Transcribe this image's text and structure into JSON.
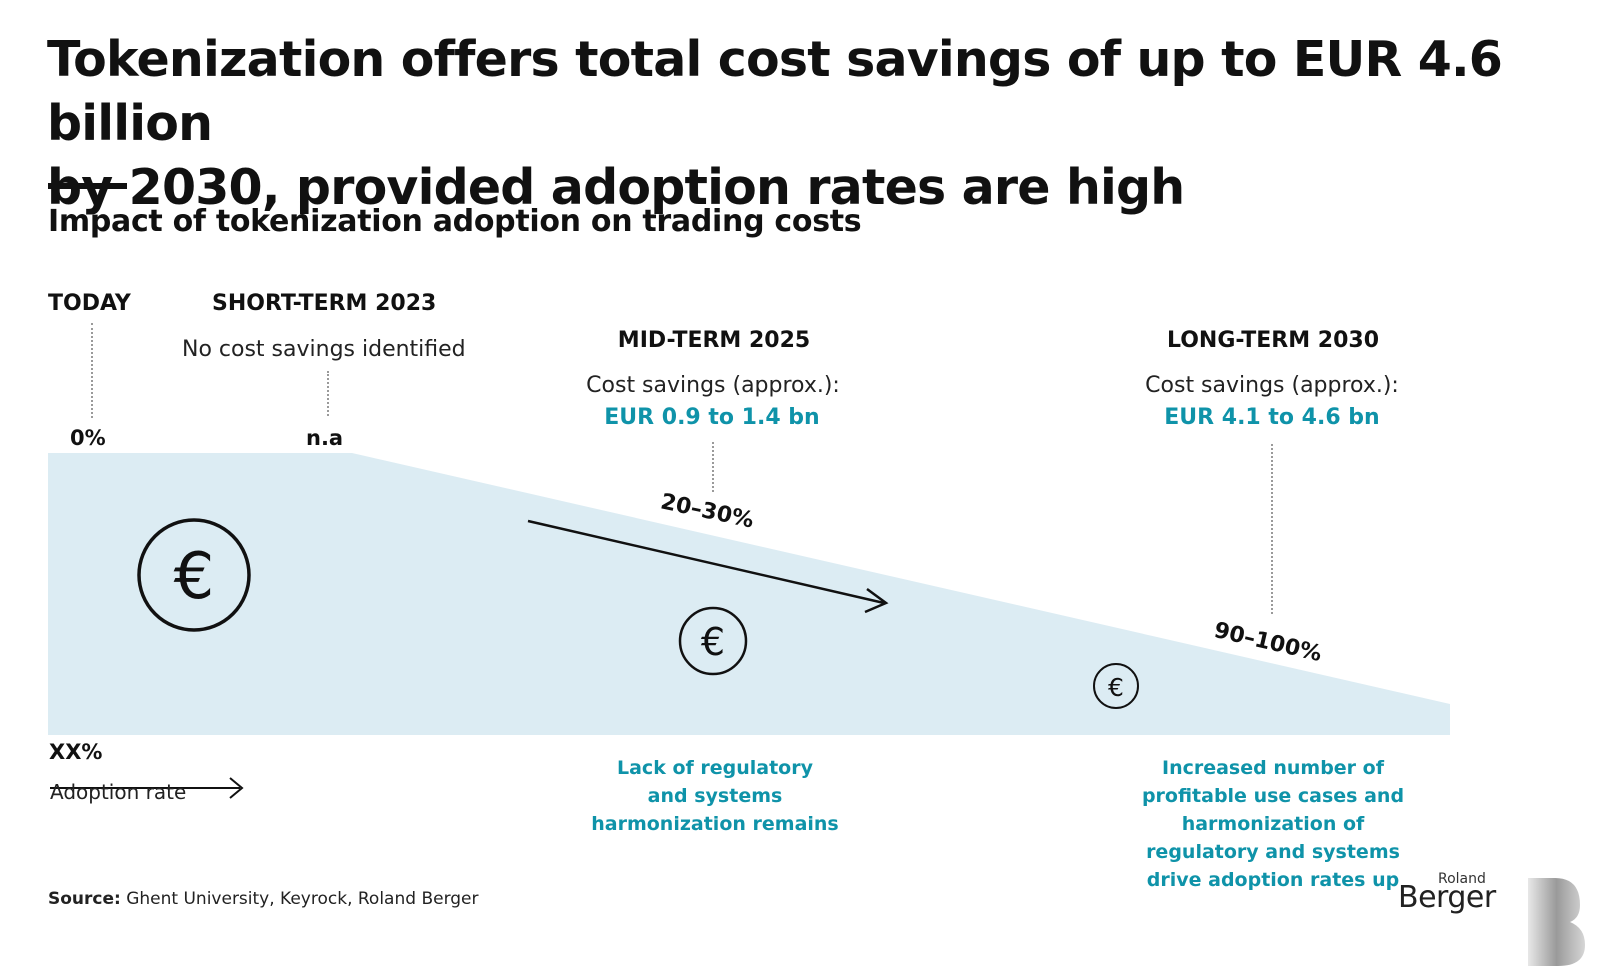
{
  "title": {
    "line1": "Tokenization offers total cost savings of up to EUR 4.6 billion",
    "line2": "by 2030, provided adoption rates are high"
  },
  "subtitle": "Impact of tokenization adoption on trading costs",
  "stages": {
    "today": {
      "label": "TODAY",
      "rate": "0%"
    },
    "short_term": {
      "label": "SHORT-TERM 2023",
      "note": "No cost savings identified",
      "rate": "n.a"
    },
    "mid_term": {
      "label": "MID-TERM 2025",
      "savings_label": "Cost savings (approx.):",
      "savings_value": "EUR 0.9 to 1.4 bn",
      "rate": "20–30%",
      "driver": [
        "Lack of regulatory",
        "and systems",
        "harmonization remains"
      ]
    },
    "long_term": {
      "label": "LONG-TERM 2030",
      "savings_label": "Cost savings (approx.):",
      "savings_value": "EUR 4.1 to 4.6 bn",
      "rate": "90–100%",
      "driver": [
        "Increased number of",
        "profitable use cases and",
        "harmonization of",
        "regulatory and systems",
        "drive adoption rates up"
      ]
    }
  },
  "euro_symbol": "€",
  "legend": {
    "value": "XX%",
    "label": "Adoption rate"
  },
  "source": {
    "prefix": "Source:",
    "text": " Ghent University, Keyrock, Roland Berger"
  },
  "logo": {
    "top": "Roland",
    "bottom": "Berger"
  },
  "colors": {
    "area": "#dcecf3",
    "accent": "#0f93a9",
    "text": "#111111"
  }
}
